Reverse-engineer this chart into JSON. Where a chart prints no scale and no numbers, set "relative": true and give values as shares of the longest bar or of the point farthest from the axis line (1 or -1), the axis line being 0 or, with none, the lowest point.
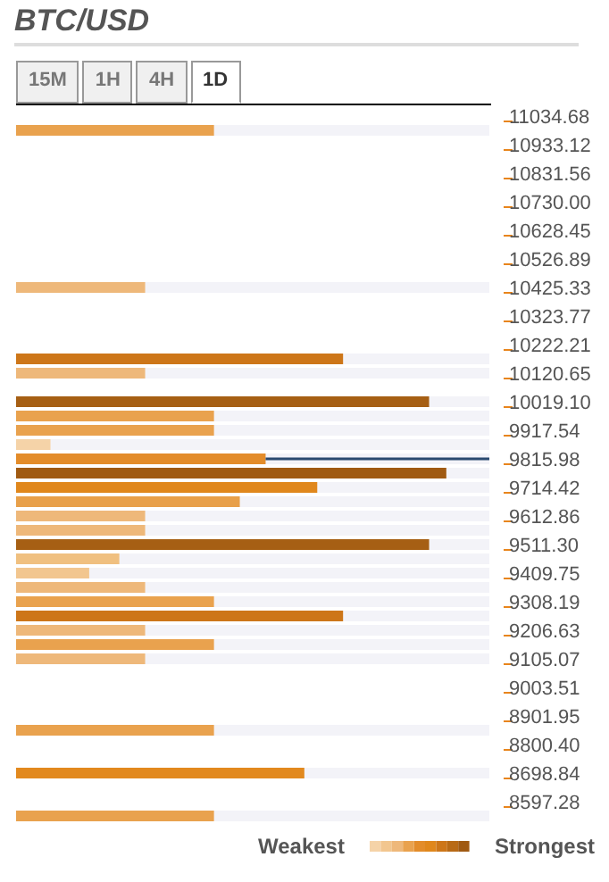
{
  "chart_data": {
    "type": "bar",
    "orientation": "horizontal",
    "relative": true,
    "title": "BTC/USD",
    "annotations": [
      "15M",
      "1H",
      "4H",
      "1D",
      "Weakest",
      "Strongest"
    ],
    "categories": [
      "11034.68",
      null,
      "10933.12",
      null,
      "10831.56",
      null,
      "10730.00",
      null,
      "10628.45",
      null,
      "10526.89",
      null,
      "10425.33",
      null,
      "10323.77",
      null,
      "10222.21",
      null,
      "10120.65",
      null,
      "10019.10",
      null,
      "9917.54",
      null,
      "9815.98",
      null,
      "9714.42",
      null,
      "9612.86",
      null,
      "9511.30",
      null,
      "9409.75",
      null,
      "9308.19",
      null,
      "9206.63",
      null,
      "9105.07",
      null,
      "9003.51",
      null,
      "8901.95",
      null,
      "8800.40",
      null,
      "8698.84",
      null,
      "8597.28",
      null
    ],
    "values": [
      null,
      0.46,
      null,
      null,
      null,
      null,
      null,
      null,
      null,
      null,
      null,
      null,
      0.3,
      null,
      null,
      null,
      null,
      0.76,
      0.3,
      null,
      0.96,
      0.46,
      0.46,
      0.08,
      0.58,
      1,
      0.7,
      0.52,
      0.3,
      0.3,
      0.96,
      0.24,
      0.17,
      0.3,
      0.46,
      0.76,
      0.3,
      0.46,
      0.3,
      null,
      null,
      null,
      null,
      0.46,
      null,
      null,
      0.67,
      null,
      null,
      0.46
    ],
    "colors": [
      null,
      "#e9a24e",
      null,
      null,
      null,
      null,
      null,
      null,
      null,
      null,
      null,
      null,
      "#eeb87a",
      null,
      null,
      null,
      null,
      "#cd7619",
      "#eeb87a",
      null,
      "#a65f14",
      "#e9a24e",
      "#e9a24e",
      "#f5d3a8",
      "#e38c2a",
      "#a05a12",
      "#e0871c",
      "#e8a04a",
      "#eeb87a",
      "#eeb87a",
      "#a65f14",
      "#f0c080",
      "#f2c68f",
      "#eeb87a",
      "#e9a24e",
      "#cd7619",
      "#eeb87a",
      "#e9a24e",
      "#eeb87a",
      null,
      null,
      null,
      null,
      "#e9a24e",
      null,
      null,
      "#e2891e",
      null,
      null,
      "#e9a24e"
    ],
    "ref_lines": [
      {
        "axis": "y",
        "value": "9815.98",
        "color": "#2b4a6f"
      }
    ]
  }
}
